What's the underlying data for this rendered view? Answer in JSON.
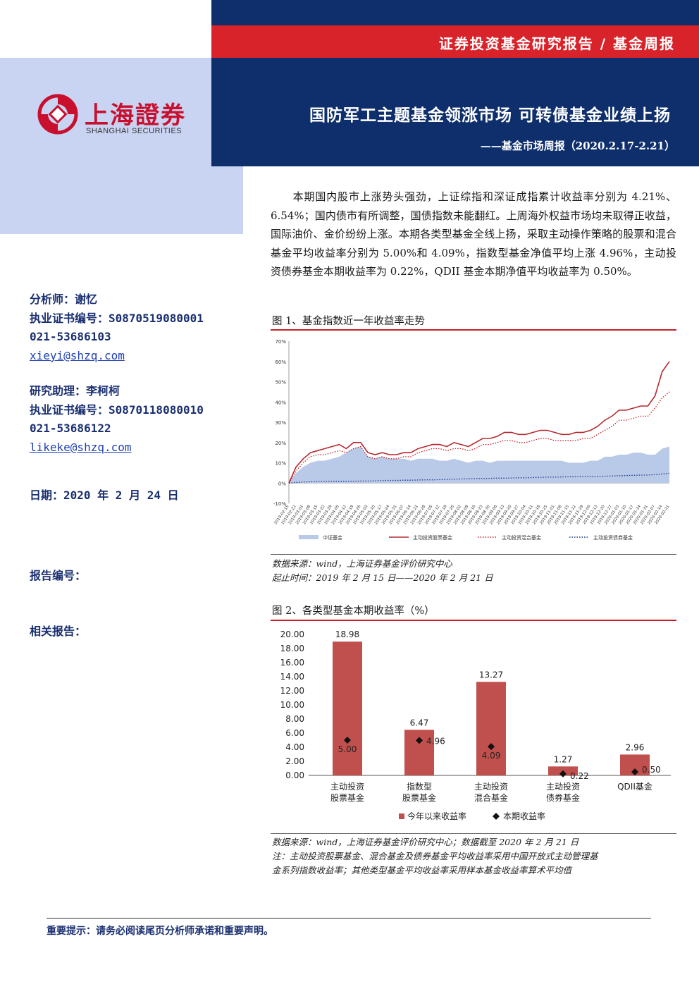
{
  "header": {
    "report_type": "证券投资基金研究报告 / 基金周报",
    "title": "国防军工主题基金领涨市场 可转债基金业绩上扬",
    "subtitle": "——基金市场周报（2020.2.17-2.21）",
    "logo_cn": "上海證券",
    "logo_en": "SHANGHAI SECURITIES",
    "colors": {
      "navy": "#0f2f6c",
      "red": "#d9232a",
      "light_band": "#c9d3f2"
    }
  },
  "analyst": {
    "analyst_line": "分析师：谢忆",
    "analyst_cert": "执业证书编号：S0870519080001",
    "analyst_phone": "021-53686103",
    "analyst_email": "xieyi@shzq.com",
    "assistant_line": "研究助理：李柯柯",
    "assistant_cert": "执业证书编号：S0870118080010",
    "assistant_phone": "021-53686122",
    "assistant_email": "likeke@shzq.com",
    "date_line": "日期：2020 年 2 月 24 日",
    "report_no": "报告编号：",
    "related": "相关报告："
  },
  "summary": "　　本期国内股市上涨势头强劲，上证综指和深证成指累计收益率分别为 4.21%、6.54%；国内债市有所调整，国债指数未能翻红。上周海外权益市场均未取得正收益，国际油价、金价纷纷上涨。本期各类型基金全线上扬，采取主动操作策略的股票和混合基金平均收益率分别为 5.00%和 4.09%，指数型基金净值平均上涨 4.96%，主动投资债券基金本期收益率为 0.22%，QDII 基金本期净值平均收益率为 0.50%。",
  "figure1": {
    "title": "图 1、基金指数近一年收益率走势",
    "source_line1": "数据来源：wind，上海证券基金评价研究中心",
    "source_line2": "起止时间：2019 年 2 月 15 日——2020 年 2 月 21 日"
  },
  "figure2": {
    "title": "图 2、各类型基金本期收益率（%）",
    "source_line1": "数据来源：wind，上海证券基金评价研究中心；数据截至 2020 年 2 月 21 日",
    "source_line2": "注：主动投资股票基金、混合基金及债券基金平均收益率采用中国开放式主动管理基",
    "source_line3": "金系列指数收益率；其他类型基金平均收益率采用样本基金收益率算术平均值"
  },
  "chart_data": [
    {
      "type": "line",
      "y_unit": "%",
      "ylim": [
        -10,
        70
      ],
      "yticks": [
        "70%",
        "60%",
        "50%",
        "40%",
        "30%",
        "20%",
        "10%",
        "0%",
        "-10%"
      ],
      "x_tick_labels": [
        "2019-02-15",
        "2019-02-22",
        "2019-03-01",
        "2019-03-08",
        "2019-03-15",
        "2019-03-22",
        "2019-03-29",
        "2019-04-05",
        "2019-04-12",
        "2019-04-19",
        "2019-04-26",
        "2019-05-03",
        "2019-05-10",
        "2019-05-17",
        "2019-05-24",
        "2019-05-31",
        "2019-06-07",
        "2019-06-14",
        "2019-06-21",
        "2019-06-28",
        "2019-07-05",
        "2019-07-12",
        "2019-07-19",
        "2019-07-26",
        "2019-08-02",
        "2019-08-09",
        "2019-08-16",
        "2019-08-23",
        "2019-08-30",
        "2019-09-06",
        "2019-09-13",
        "2019-09-20",
        "2019-09-27",
        "2019-10-04",
        "2019-10-11",
        "2019-10-18",
        "2019-10-25",
        "2019-11-01",
        "2019-11-08",
        "2019-11-15",
        "2019-11-22",
        "2019-11-29",
        "2019-12-06",
        "2019-12-13",
        "2019-12-20",
        "2019-12-27",
        "2020-01-03",
        "2020-01-10",
        "2020-01-17",
        "2020-01-24",
        "2020-01-31",
        "2020-02-07",
        "2020-02-14",
        "2020-02-21"
      ],
      "legend": [
        "中证基金",
        "主动投资股票基金",
        "主动投资混合基金",
        "主动投资债券基金"
      ],
      "legend_placement": "bottom",
      "series": [
        {
          "name": "中证基金",
          "style": "area",
          "color": "#b9c9e8",
          "values": [
            0,
            5,
            8,
            10,
            11,
            11,
            12,
            13,
            15,
            17,
            18,
            13,
            12,
            13,
            12,
            12,
            12,
            11,
            12,
            12,
            12,
            11,
            11,
            12,
            11,
            10,
            11,
            11,
            10,
            11,
            11,
            11,
            11,
            11,
            11,
            11,
            11,
            11,
            11,
            10,
            10,
            10,
            11,
            11,
            13,
            13,
            14,
            14,
            15,
            15,
            14,
            14,
            17,
            18
          ]
        },
        {
          "name": "主动投资股票基金",
          "style": "solid",
          "color": "#b52a2f",
          "values": [
            0,
            8,
            12,
            15,
            16,
            17,
            18,
            19,
            17,
            20,
            20,
            15,
            14,
            15,
            14,
            14,
            15,
            15,
            17,
            18,
            19,
            19,
            18,
            20,
            19,
            18,
            20,
            22,
            22,
            23,
            25,
            25,
            24,
            24,
            25,
            26,
            26,
            25,
            24,
            24,
            25,
            25,
            26,
            28,
            31,
            33,
            36,
            36,
            37,
            38,
            38,
            43,
            55,
            60
          ]
        },
        {
          "name": "主动投资混合基金",
          "style": "dotted",
          "color": "#c8202a",
          "values": [
            0,
            6,
            10,
            13,
            14,
            14,
            15,
            16,
            15,
            17,
            18,
            13,
            12,
            13,
            12,
            12,
            13,
            13,
            15,
            16,
            17,
            17,
            16,
            17,
            17,
            16,
            17,
            19,
            19,
            20,
            21,
            21,
            20,
            20,
            21,
            22,
            22,
            21,
            21,
            21,
            21,
            22,
            22,
            24,
            26,
            28,
            31,
            31,
            32,
            33,
            33,
            37,
            42,
            45
          ]
        },
        {
          "name": "主动投资债券基金",
          "style": "dotted",
          "color": "#1f3a8a",
          "values": [
            0,
            0.3,
            0.5,
            0.6,
            0.7,
            0.8,
            0.9,
            0.9,
            0.9,
            0.9,
            1.0,
            1.0,
            1.1,
            1.2,
            1.3,
            1.3,
            1.4,
            1.4,
            1.5,
            1.6,
            1.6,
            1.7,
            1.8,
            1.9,
            2.0,
            2.1,
            2.2,
            2.2,
            2.3,
            2.4,
            2.4,
            2.5,
            2.6,
            2.6,
            2.7,
            2.8,
            2.9,
            2.9,
            3.0,
            3.1,
            3.1,
            3.2,
            3.3,
            3.3,
            3.4,
            3.5,
            3.6,
            3.7,
            3.8,
            3.9,
            3.9,
            4.2,
            4.5,
            4.8
          ]
        }
      ]
    },
    {
      "type": "bar",
      "categories": [
        [
          "主动投资",
          "股票基金"
        ],
        [
          "指数型",
          "股票基金"
        ],
        [
          "主动投资",
          "混合基金"
        ],
        [
          "主动投资",
          "债券基金"
        ],
        [
          "QDII基金"
        ]
      ],
      "ylim": [
        0,
        20
      ],
      "yticks": [
        "20.00",
        "18.00",
        "16.00",
        "14.00",
        "12.00",
        "10.00",
        "8.00",
        "6.00",
        "4.00",
        "2.00",
        "0.00"
      ],
      "legend": [
        "今年以来收益率",
        "本期收益率"
      ],
      "legend_placement": "bottom",
      "series": [
        {
          "name": "今年以来收益率",
          "style": "bar",
          "color": "#c0504d",
          "values": [
            18.98,
            6.47,
            13.27,
            1.27,
            2.96
          ],
          "labels": [
            "18.98",
            "6.47",
            "13.27",
            "1.27",
            "2.96"
          ]
        },
        {
          "name": "本期收益率",
          "style": "diamond",
          "color": "#111111",
          "values": [
            5.0,
            4.96,
            4.09,
            0.22,
            0.5
          ],
          "labels": [
            "5.00",
            "4.96",
            "4.09",
            "0.22",
            "0.50"
          ]
        }
      ]
    }
  ],
  "footer": "重要提示：请务必阅读尾页分析师承诺和重要声明。"
}
